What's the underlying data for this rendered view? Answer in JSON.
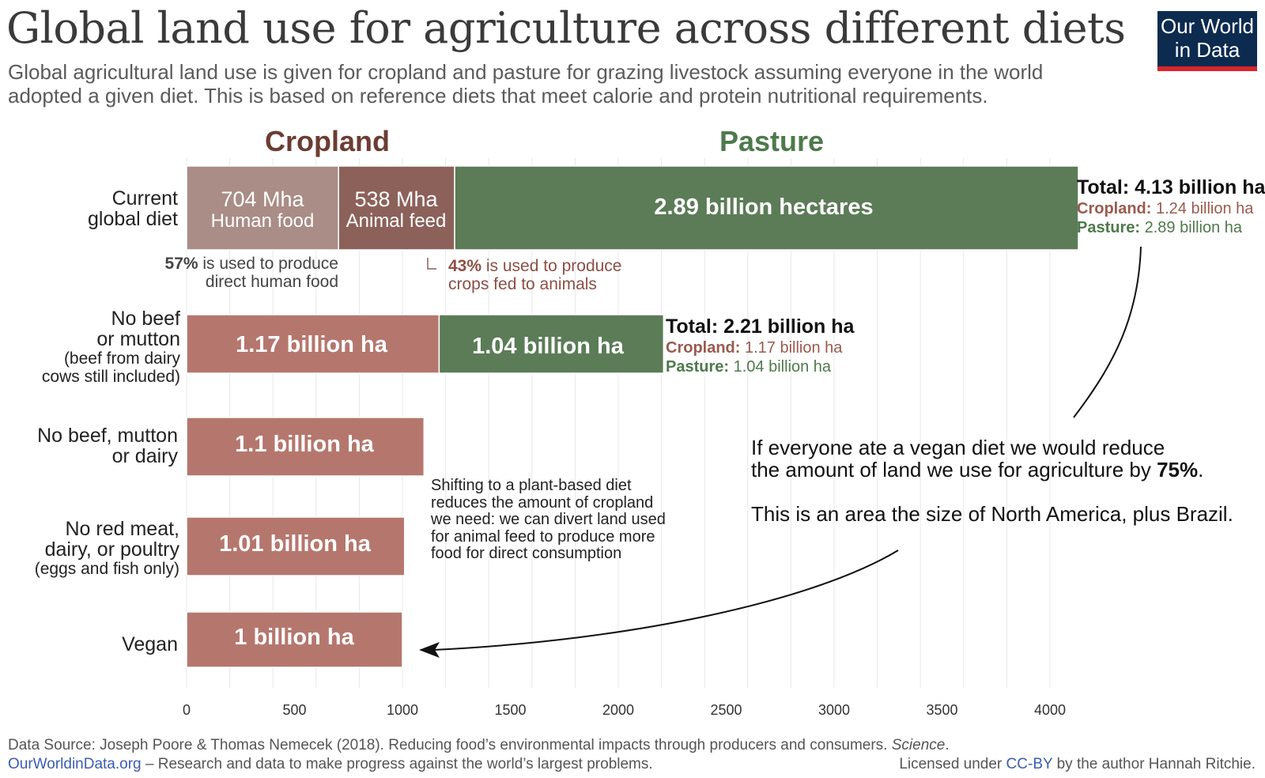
{
  "header": {
    "title": "Global land use for agriculture across different diets",
    "subtitle_line1": "Global agricultural land use is given for cropland and pasture for grazing livestock assuming everyone in the world",
    "subtitle_line2": "adopted a given diet. This is based on reference diets that meet calorie and protein nutritional requirements.",
    "logo_line1": "Our World",
    "logo_line2": "in Data"
  },
  "column_headers": {
    "cropland": "Cropland",
    "pasture": "Pasture"
  },
  "colors": {
    "cropland_human": "#a98d86",
    "cropland_feed": "#8c615a",
    "cropland": "#b5776d",
    "pasture": "#5b7c57",
    "cropland_text": "#9a5a4e",
    "pasture_text": "#4e7a4b",
    "cropland_header": "#6b3d33",
    "logo_bg": "#0c2b4f",
    "logo_accent": "#d6262b"
  },
  "chart_data": {
    "type": "bar",
    "orientation": "horizontal",
    "stacked": true,
    "xlim": [
      0,
      4000
    ],
    "xticks": [
      0,
      500,
      1000,
      1500,
      2000,
      2500,
      3000,
      3500,
      4000
    ],
    "grid": true,
    "categories": [
      "Current global diet",
      "No beef or mutton (beef from dairy cows still included)",
      "No beef, mutton or dairy",
      "No red meat, dairy, or poultry (eggs and fish only)",
      "Vegan"
    ],
    "series": [
      {
        "name": "Human food",
        "values": [
          704,
          0,
          0,
          0,
          0
        ]
      },
      {
        "name": "Animal feed",
        "values": [
          538,
          0,
          0,
          0,
          0
        ]
      },
      {
        "name": "Cropland",
        "values": [
          0,
          1170,
          1100,
          1010,
          1000
        ]
      },
      {
        "name": "Pasture",
        "values": [
          2890,
          1040,
          0,
          0,
          0
        ]
      }
    ],
    "bar_labels": {
      "current_human_value": "704 Mha",
      "current_human_name": "Human food",
      "current_feed_value": "538 Mha",
      "current_feed_name": "Animal feed",
      "current_pasture": "2.89 billion hectares",
      "nobeef_crop": "1.17 billion ha",
      "nobeef_pasture": "1.04 billion ha",
      "nodairy_crop": "1.1 billion ha",
      "eggsfish_crop": "1.01 billion ha",
      "vegan_crop": "1 billion ha"
    }
  },
  "row_labels": {
    "current_l1": "Current",
    "current_l2": "global diet",
    "nobeef_l1": "No beef",
    "nobeef_l2": "or mutton",
    "nobeef_s1": "(beef from dairy",
    "nobeef_s2": "cows still included)",
    "nodairy_l1": "No beef, mutton",
    "nodairy_l2": "or dairy",
    "eggsfish_l1": "No red meat,",
    "eggsfish_l2": "dairy, or poultry",
    "eggsfish_s1": "(eggs and fish only)",
    "vegan_l1": "Vegan"
  },
  "totals": {
    "current": {
      "total": "Total: 4.13 billion ha",
      "crop_label": "Cropland:",
      "crop_value": "1.24 billion ha",
      "past_label": "Pasture:",
      "past_value": "2.89 billion ha"
    },
    "nobeef": {
      "total": "Total: 2.21 billion ha",
      "crop_label": "Cropland:",
      "crop_value": "1.17 billion ha",
      "past_label": "Pasture:",
      "past_value": "1.04 billion ha"
    }
  },
  "notes": {
    "human_pct": "57%",
    "human_l1": " is used to produce",
    "human_l2": "direct human food",
    "feed_pct": "43%",
    "feed_l1": " is used to produce",
    "feed_l2": "crops fed to animals",
    "shift_l1": "Shifting to a plant-based diet",
    "shift_l2": "reduces the amount of cropland",
    "shift_l3": "we need: we can divert land used",
    "shift_l4": "for animal feed to produce more",
    "shift_l5": "food for direct consumption"
  },
  "annotation": {
    "l1": "If everyone ate a vegan diet we would reduce",
    "l2_pre": "the amount of land we use for agriculture by ",
    "l2_bold": "75%",
    "l2_post": ".",
    "l3": "This is an area the size of North America, plus Brazil."
  },
  "footer": {
    "source_pre": "Data Source: Joseph Poore & Thomas Nemecek (2018). Reducing food’s environmental impacts through producers and consumers. ",
    "source_journal": "Science",
    "source_post": ".",
    "site": "OurWorldinData.org",
    "site_tagline": " – Research and data to make progress against the world’s largest problems.",
    "license_pre": "Licensed under ",
    "license_link": "CC-BY",
    "license_post": " by the author Hannah Ritchie."
  }
}
